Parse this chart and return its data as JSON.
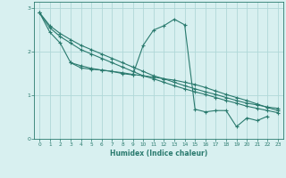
{
  "xlabel": "Humidex (Indice chaleur)",
  "bg_color": "#d8f0f0",
  "grid_color": "#b0d8d8",
  "line_color": "#2a7a6e",
  "xlim": [
    -0.5,
    23.5
  ],
  "ylim": [
    0,
    3.15
  ],
  "yticks": [
    0,
    1,
    2,
    3
  ],
  "xticks": [
    0,
    1,
    2,
    3,
    4,
    5,
    6,
    7,
    8,
    9,
    10,
    11,
    12,
    13,
    14,
    15,
    16,
    17,
    18,
    19,
    20,
    21,
    22,
    23
  ],
  "lines": [
    {
      "x": [
        0,
        1,
        2,
        3,
        4,
        5,
        6,
        7,
        8,
        9,
        10,
        11,
        12,
        13,
        14,
        15,
        16,
        17,
        18,
        19,
        20,
        21,
        22
      ],
      "y": [
        2.9,
        2.45,
        2.2,
        1.75,
        1.63,
        1.6,
        1.58,
        1.55,
        1.5,
        1.47,
        2.15,
        2.5,
        2.6,
        2.75,
        2.62,
        0.68,
        0.62,
        0.65,
        0.65,
        0.28,
        0.48,
        0.42,
        0.52
      ]
    },
    {
      "x": [
        0,
        1,
        2,
        3,
        4,
        5,
        6,
        7,
        8,
        9,
        10,
        11,
        12,
        13,
        14,
        15,
        16,
        17,
        18,
        19,
        20,
        21,
        22,
        23
      ],
      "y": [
        2.9,
        2.6,
        2.42,
        2.28,
        2.15,
        2.05,
        1.95,
        1.85,
        1.75,
        1.65,
        1.55,
        1.45,
        1.38,
        1.3,
        1.22,
        1.15,
        1.08,
        1.02,
        0.95,
        0.88,
        0.82,
        0.78,
        0.73,
        0.7
      ]
    },
    {
      "x": [
        0,
        1,
        2,
        3,
        4,
        5,
        6,
        7,
        8,
        9,
        10,
        11,
        12,
        13,
        14,
        15,
        16,
        17,
        18,
        19,
        20,
        21,
        22,
        23
      ],
      "y": [
        2.9,
        2.55,
        2.35,
        2.2,
        2.05,
        1.95,
        1.85,
        1.75,
        1.65,
        1.55,
        1.45,
        1.38,
        1.3,
        1.22,
        1.15,
        1.08,
        1.02,
        0.95,
        0.88,
        0.82,
        0.75,
        0.7,
        0.65,
        0.6
      ]
    },
    {
      "x": [
        3,
        4,
        5,
        6,
        7,
        8,
        9,
        10,
        11,
        12,
        13,
        14,
        15,
        16,
        17,
        18,
        19,
        20,
        21,
        22,
        23
      ],
      "y": [
        1.75,
        1.68,
        1.62,
        1.58,
        1.55,
        1.52,
        1.48,
        1.45,
        1.42,
        1.38,
        1.35,
        1.3,
        1.25,
        1.18,
        1.1,
        1.02,
        0.95,
        0.88,
        0.8,
        0.72,
        0.65
      ]
    }
  ]
}
